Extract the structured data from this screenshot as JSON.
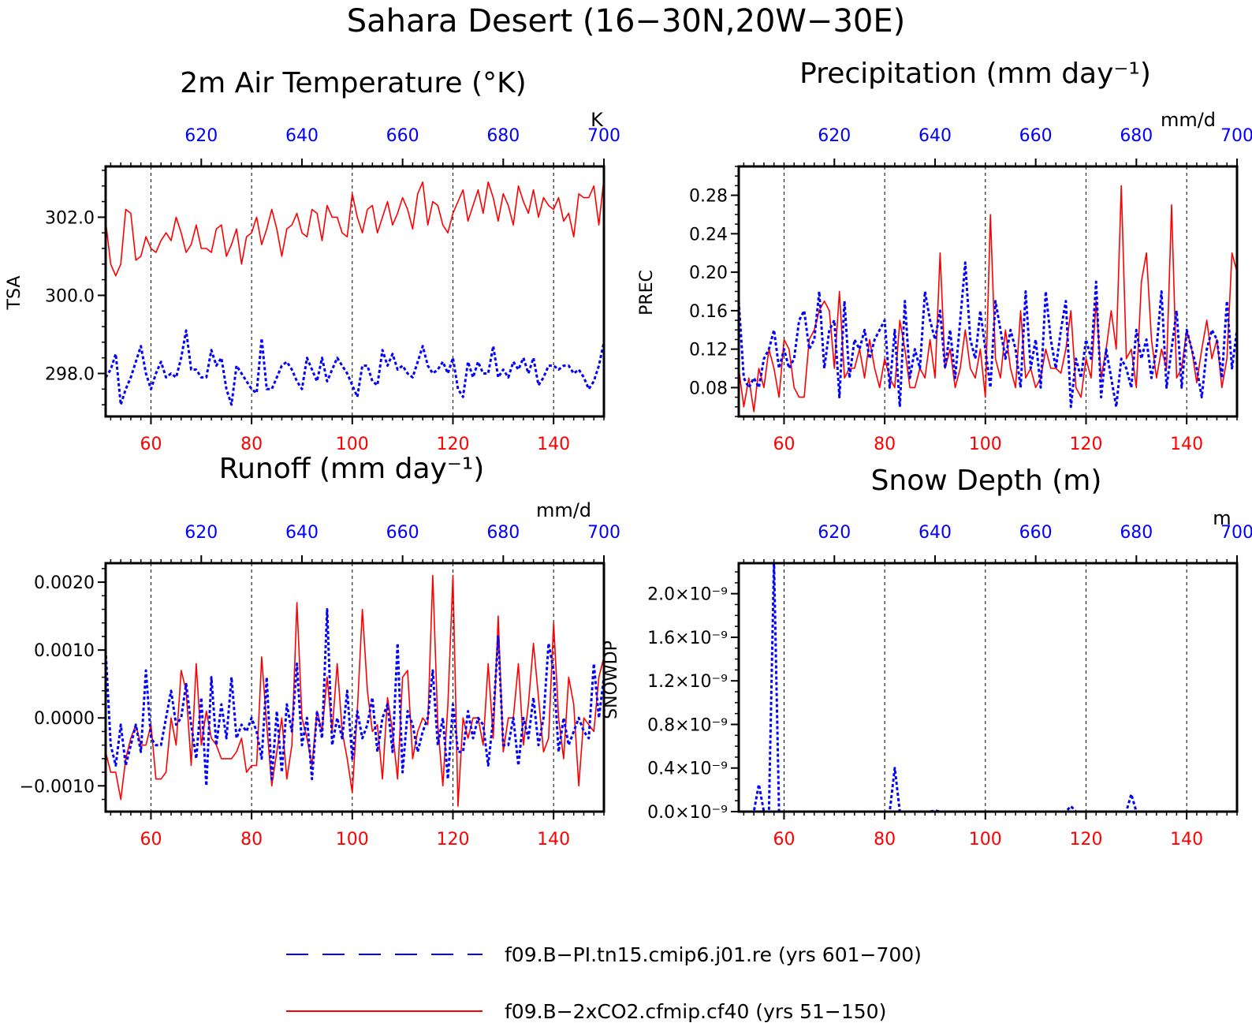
{
  "figure": {
    "title": "Sahara Desert (16−30N,20W−30E)"
  },
  "colors": {
    "case1": "#0000ff",
    "case2": "#ff0000",
    "axis": "#000000"
  },
  "legend": {
    "items": [
      {
        "label": "f09.B−PI.tn15.cmip6.j01.re (yrs 601−700)",
        "color": "#0000ff",
        "style": "dashed"
      },
      {
        "label": "f09.B−2xCO2.cfmip.cf40 (yrs 51−150)",
        "color": "#ff0000",
        "style": "solid"
      }
    ]
  },
  "chart_data": [
    {
      "type": "line",
      "title": "2m Air Temperature (°K)",
      "ylabel": "TSA",
      "units": "K",
      "xlim": [
        51,
        150
      ],
      "ylim": [
        296.9,
        303.3
      ],
      "yticks": [
        298.0,
        300.0,
        302.0
      ],
      "ytick_labels": [
        "298.0",
        "300.0",
        "302.0"
      ],
      "yminor_step": 0.4,
      "xticks": [
        60,
        80,
        100,
        120,
        140
      ],
      "top_xticks": [
        620,
        640,
        660,
        680,
        700
      ],
      "top_range": [
        601,
        700
      ],
      "grid": "vertical dashed at bottom ticks",
      "series": [
        {
          "name": "f09.B−2xCO2.cfmip.cf40 (yrs 51−150)",
          "color": "#ff0000",
          "style": "solid",
          "x_start": 51,
          "values": [
            301.9,
            300.8,
            300.5,
            300.8,
            302.2,
            302.1,
            300.9,
            301.0,
            301.5,
            301.2,
            301.1,
            301.4,
            301.6,
            301.4,
            302.0,
            301.6,
            301.1,
            301.3,
            301.8,
            301.2,
            301.2,
            301.1,
            301.7,
            301.8,
            301.0,
            301.3,
            301.7,
            300.8,
            301.5,
            301.6,
            302.0,
            301.3,
            301.7,
            302.2,
            301.7,
            301.0,
            301.7,
            301.8,
            302.1,
            301.6,
            301.5,
            302.2,
            302.1,
            301.4,
            302.3,
            302.0,
            302.0,
            301.6,
            301.5,
            302.6,
            302.0,
            301.6,
            302.2,
            302.3,
            301.6,
            302.0,
            302.4,
            301.8,
            302.1,
            302.5,
            302.2,
            301.7,
            302.6,
            302.9,
            301.8,
            302.4,
            302.3,
            301.8,
            301.6,
            302.1,
            302.4,
            302.7,
            301.9,
            302.3,
            302.7,
            302.1,
            302.9,
            302.5,
            301.9,
            302.6,
            302.3,
            301.8,
            302.8,
            302.4,
            302.1,
            302.7,
            302.0,
            302.5,
            302.3,
            302.2,
            302.5,
            301.9,
            302.1,
            301.5,
            302.6,
            302.5,
            302.5,
            302.8,
            301.8,
            303.0
          ]
        },
        {
          "name": "f09.B−PI.tn15.cmip6.j01.re (yrs 601−700)",
          "color": "#0000ff",
          "style": "dashed",
          "x_start": 51,
          "values": [
            297.9,
            298.1,
            298.5,
            297.2,
            297.6,
            297.9,
            298.3,
            298.7,
            298.0,
            297.6,
            298.0,
            298.3,
            297.9,
            298.0,
            297.9,
            298.4,
            299.1,
            298.1,
            298.1,
            297.9,
            297.9,
            298.6,
            298.2,
            298.4,
            297.6,
            297.2,
            298.2,
            298.0,
            297.8,
            297.6,
            297.5,
            298.9,
            297.6,
            297.6,
            297.9,
            298.2,
            298.3,
            298.1,
            297.8,
            297.6,
            298.4,
            298.1,
            297.8,
            298.4,
            297.8,
            298.1,
            298.4,
            298.2,
            298.0,
            297.7,
            297.4,
            298.2,
            298.2,
            297.8,
            297.7,
            298.6,
            298.2,
            298.5,
            298.1,
            298.2,
            298.0,
            297.9,
            298.3,
            298.7,
            298.2,
            298.0,
            298.1,
            298.3,
            298.0,
            298.4,
            297.6,
            297.4,
            298.3,
            297.9,
            298.3,
            298.0,
            298.0,
            298.7,
            297.9,
            298.1,
            297.9,
            298.3,
            298.1,
            298.4,
            298.0,
            298.4,
            297.7,
            297.9,
            298.2,
            298.2,
            298.1,
            298.2,
            298.2,
            298.0,
            298.1,
            297.9,
            297.6,
            297.8,
            298.2,
            298.8
          ]
        }
      ]
    },
    {
      "type": "line",
      "title": "Precipitation (mm day⁻¹)",
      "ylabel": "PREC",
      "units": "mm/d",
      "xlim": [
        51,
        150
      ],
      "ylim": [
        0.05,
        0.31
      ],
      "yticks": [
        0.08,
        0.12,
        0.16,
        0.2,
        0.24,
        0.28
      ],
      "ytick_labels": [
        "0.08",
        "0.12",
        "0.16",
        "0.20",
        "0.24",
        "0.28"
      ],
      "yminor_step": 0.01,
      "xticks": [
        60,
        80,
        100,
        120,
        140
      ],
      "top_xticks": [
        620,
        640,
        660,
        680,
        700
      ],
      "top_range": [
        601,
        700
      ],
      "grid": "vertical dashed at bottom ticks",
      "series": [
        {
          "name": "f09.B−2xCO2.cfmip.cf40 (yrs 51−150)",
          "color": "#ff0000",
          "style": "solid",
          "x_start": 51,
          "values": [
            0.1,
            0.06,
            0.09,
            0.055,
            0.1,
            0.08,
            0.12,
            0.1,
            0.07,
            0.13,
            0.12,
            0.08,
            0.07,
            0.07,
            0.13,
            0.14,
            0.16,
            0.17,
            0.16,
            0.1,
            0.18,
            0.09,
            0.1,
            0.1,
            0.12,
            0.09,
            0.13,
            0.1,
            0.08,
            0.11,
            0.09,
            0.08,
            0.15,
            0.12,
            0.08,
            0.08,
            0.1,
            0.09,
            0.13,
            0.09,
            0.22,
            0.1,
            0.12,
            0.08,
            0.1,
            0.14,
            0.1,
            0.09,
            0.12,
            0.07,
            0.26,
            0.11,
            0.09,
            0.14,
            0.1,
            0.08,
            0.16,
            0.09,
            0.1,
            0.08,
            0.09,
            0.12,
            0.1,
            0.1,
            0.095,
            0.12,
            0.16,
            0.08,
            0.07,
            0.11,
            0.09,
            0.17,
            0.09,
            0.12,
            0.16,
            0.12,
            0.29,
            0.11,
            0.12,
            0.08,
            0.19,
            0.22,
            0.13,
            0.09,
            0.12,
            0.1,
            0.27,
            0.09,
            0.1,
            0.14,
            0.12,
            0.085,
            0.12,
            0.15,
            0.11,
            0.13,
            0.08,
            0.11,
            0.22,
            0.2
          ]
        },
        {
          "name": "f09.B−PI.tn15.cmip6.j01.re (yrs 601−700)",
          "color": "#0000ff",
          "style": "dashed",
          "x_start": 51,
          "values": [
            0.17,
            0.09,
            0.08,
            0.09,
            0.08,
            0.11,
            0.12,
            0.14,
            0.1,
            0.12,
            0.1,
            0.11,
            0.15,
            0.16,
            0.12,
            0.13,
            0.18,
            0.1,
            0.14,
            0.15,
            0.07,
            0.17,
            0.09,
            0.13,
            0.12,
            0.14,
            0.11,
            0.13,
            0.14,
            0.15,
            0.08,
            0.14,
            0.06,
            0.17,
            0.09,
            0.12,
            0.1,
            0.18,
            0.15,
            0.13,
            0.16,
            0.1,
            0.14,
            0.09,
            0.15,
            0.21,
            0.13,
            0.11,
            0.16,
            0.12,
            0.08,
            0.17,
            0.14,
            0.11,
            0.14,
            0.12,
            0.08,
            0.18,
            0.1,
            0.13,
            0.08,
            0.18,
            0.13,
            0.1,
            0.14,
            0.17,
            0.06,
            0.11,
            0.09,
            0.13,
            0.11,
            0.19,
            0.07,
            0.12,
            0.09,
            0.06,
            0.11,
            0.1,
            0.08,
            0.14,
            0.11,
            0.13,
            0.09,
            0.12,
            0.18,
            0.08,
            0.12,
            0.16,
            0.08,
            0.14,
            0.12,
            0.1,
            0.07,
            0.12,
            0.14,
            0.13,
            0.09,
            0.17,
            0.1,
            0.14
          ]
        }
      ]
    },
    {
      "type": "line",
      "title": "Runoff (mm day⁻¹)",
      "ylabel": "",
      "units": "mm/d",
      "xlim": [
        51,
        150
      ],
      "ylim": [
        -0.00138,
        0.00228
      ],
      "yticks": [
        -0.001,
        0.0,
        0.001,
        0.002
      ],
      "ytick_labels": [
        "−0.0010",
        "0.0000",
        "0.0010",
        "0.0020"
      ],
      "yminor_step": 0.0002,
      "xticks": [
        60,
        80,
        100,
        120,
        140
      ],
      "top_xticks": [
        620,
        640,
        660,
        680,
        700
      ],
      "top_range": [
        601,
        700
      ],
      "grid": "vertical dashed at bottom ticks",
      "series": [
        {
          "name": "f09.B−2xCO2.cfmip.cf40 (yrs 51−150)",
          "color": "#ff0000",
          "style": "solid",
          "x_start": 51,
          "values": [
            -0.0005,
            -0.0008,
            -0.0008,
            -0.0012,
            -0.0006,
            -0.0003,
            -0.0001,
            -0.0004,
            -0.0004,
            -0.0001,
            -0.0009,
            -0.0009,
            -0.0008,
            0.0,
            -0.0004,
            0.0007,
            0.0004,
            -0.0007,
            0.0008,
            -0.0004,
            0.0001,
            -0.0003,
            -0.0004,
            -0.0006,
            -0.0006,
            -0.0006,
            -0.0005,
            -0.0003,
            -0.0008,
            -0.0007,
            -0.0007,
            0.0009,
            -0.0001,
            -0.001,
            -0.0005,
            0.0,
            -0.0009,
            -0.0004,
            0.0017,
            0.0,
            -0.0003,
            -0.0007,
            0.0001,
            -0.0002,
            0.0006,
            -0.0002,
            0.0008,
            -0.0002,
            -0.0006,
            -0.0011,
            0.0001,
            0.0016,
            0.0004,
            -0.0002,
            -0.0001,
            -0.0009,
            0.0003,
            -0.0002,
            -0.0009,
            0.0006,
            0.0007,
            -0.0006,
            -0.0002,
            0.0,
            -0.0001,
            0.0021,
            -0.0001,
            -0.001,
            0.0002,
            0.0021,
            -0.0013,
            0.0,
            -0.0003,
            0.0,
            0.0,
            -0.0004,
            0.0008,
            -0.0003,
            0.0015,
            -0.0005,
            0.0,
            0.0,
            0.0008,
            -0.0004,
            0.0002,
            0.0011,
            0.0003,
            -0.0005,
            -0.0003,
            0.0014,
            0.0,
            -0.0006,
            0.0006,
            0.0002,
            -0.001,
            0.0,
            -0.0001,
            -0.0002,
            0.0006,
            0.0009
          ]
        },
        {
          "name": "f09.B−PI.tn15.cmip6.j01.re (yrs 601−700)",
          "color": "#0000ff",
          "style": "dashed",
          "x_start": 51,
          "values": [
            0.001,
            -0.0004,
            -0.0007,
            -0.0001,
            -0.0007,
            -0.0004,
            -0.0001,
            -0.0005,
            0.0007,
            -0.0003,
            -0.0004,
            -0.0004,
            0.0,
            0.0004,
            -0.0001,
            0.0,
            0.0005,
            -0.0001,
            -0.0006,
            0.0003,
            -0.001,
            0.0006,
            -0.0004,
            0.0002,
            -0.0003,
            0.0006,
            -0.0003,
            -0.0001,
            -0.0002,
            0.0,
            -0.0002,
            -0.0006,
            0.0006,
            -0.0009,
            0.0001,
            -0.0008,
            0.0002,
            -0.0002,
            0.0008,
            -0.0004,
            0.0,
            -0.0009,
            0.0001,
            -0.0003,
            0.0016,
            -0.0004,
            0.0,
            -0.0003,
            0.0004,
            -0.0006,
            0.0001,
            -0.0003,
            -0.0001,
            0.0003,
            -0.0005,
            0.0,
            0.0002,
            -0.0005,
            0.0011,
            -0.0008,
            0.0001,
            -0.0001,
            -0.0005,
            -0.0002,
            0.0,
            0.0007,
            -0.0004,
            0.0,
            -0.0009,
            0.0002,
            -0.0005,
            -0.0005,
            0.0001,
            -0.0003,
            0.0,
            -0.0001,
            -0.0007,
            0.0,
            0.0012,
            -0.0004,
            -0.0004,
            0.0,
            -0.0007,
            0.0,
            -0.0003,
            0.0003,
            -0.0004,
            0.0,
            0.0011,
            0.0007,
            -0.0005,
            0.0,
            -0.0004,
            -0.0002,
            0.0,
            -0.0002,
            -0.0003,
            0.0008,
            0.0,
            0.0006
          ]
        }
      ]
    },
    {
      "type": "line",
      "title": "Snow Depth (m)",
      "ylabel": "SNOWDP",
      "units": "m",
      "xlim": [
        51,
        150
      ],
      "ylim": [
        0.0,
        2.28
      ],
      "yticks": [
        0.0,
        0.4,
        0.8,
        1.2,
        1.6,
        2.0
      ],
      "ytick_labels": [
        "0.0",
        "0.4",
        "0.8",
        "1.2",
        "1.6",
        "2.0"
      ],
      "ytick_suffix": "×10⁻⁹",
      "yminor_step": 0.1,
      "xticks": [
        60,
        80,
        100,
        120,
        140
      ],
      "top_xticks": [
        620,
        640,
        660,
        680,
        700
      ],
      "top_range": [
        601,
        700
      ],
      "grid": "vertical dashed at bottom ticks",
      "series": [
        {
          "name": "f09.B−2xCO2.cfmip.cf40 (yrs 51−150)",
          "color": "#ff0000",
          "style": "solid",
          "x_start": 51,
          "values": [
            0,
            0,
            0,
            0,
            0,
            0,
            0,
            0,
            0,
            0,
            0,
            0,
            0,
            0,
            0,
            0,
            0,
            0,
            0,
            0,
            0,
            0,
            0,
            0,
            0,
            0,
            0,
            0,
            0,
            0,
            0,
            0,
            0,
            0,
            0,
            0,
            0,
            0,
            0,
            0,
            0,
            0,
            0,
            0,
            0,
            0,
            0,
            0,
            0,
            0,
            0,
            0,
            0,
            0,
            0,
            0,
            0,
            0,
            0,
            0,
            0,
            0,
            0,
            0,
            0,
            0,
            0,
            0,
            0,
            0,
            0,
            0,
            0,
            0,
            0,
            0,
            0,
            0,
            0,
            0,
            0,
            0,
            0,
            0,
            0,
            0,
            0,
            0,
            0,
            0,
            0,
            0,
            0,
            0,
            0,
            0,
            0,
            0,
            0,
            0
          ]
        },
        {
          "name": "f09.B−PI.tn15.cmip6.j01.re (yrs 601−700)",
          "color": "#0000ff",
          "style": "dashed",
          "x_start": 51,
          "values": [
            0,
            0,
            0,
            0,
            0.25,
            0,
            0,
            2.3,
            0,
            0,
            0,
            0,
            0,
            0,
            0,
            0,
            0,
            0,
            0,
            0,
            0,
            0,
            0,
            0,
            0,
            0,
            0,
            0,
            0,
            0,
            0,
            0.4,
            0,
            0,
            0,
            0,
            0,
            0,
            0,
            0.01,
            0,
            0,
            0,
            0,
            0,
            0,
            0,
            0,
            0,
            0,
            0,
            0,
            0,
            0,
            0,
            0,
            0,
            0,
            0,
            0,
            0,
            0,
            0,
            0,
            0,
            0,
            0.05,
            0,
            0,
            0,
            0,
            0,
            0,
            0,
            0,
            0,
            0,
            0,
            0.16,
            0,
            0,
            0,
            0,
            0,
            0,
            0,
            0,
            0,
            0,
            0,
            0,
            0,
            0,
            0,
            0,
            0,
            0,
            0,
            0,
            0
          ]
        }
      ]
    }
  ]
}
